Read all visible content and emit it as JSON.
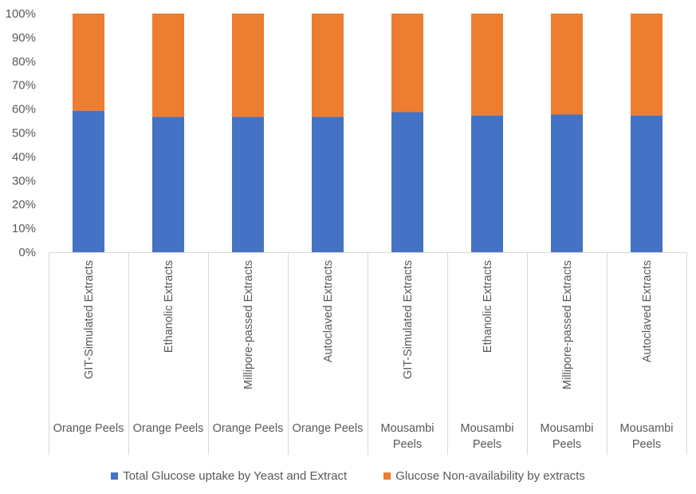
{
  "chart_data": {
    "type": "bar",
    "stacked": true,
    "percent_stacked": true,
    "title": "",
    "xlabel": "",
    "ylabel": "",
    "ylim": [
      0,
      100
    ],
    "y_ticks": [
      "0%",
      "10%",
      "20%",
      "30%",
      "40%",
      "50%",
      "60%",
      "70%",
      "80%",
      "90%",
      "100%"
    ],
    "categories": [
      {
        "label": "GIT-Simulated Extracts",
        "group": "Orange Peels"
      },
      {
        "label": "Ethanolic Extracts",
        "group": "Orange Peels"
      },
      {
        "label": "Millipore-passed Extracts",
        "group": "Orange Peels"
      },
      {
        "label": "Autoclaved Extracts",
        "group": "Orange Peels"
      },
      {
        "label": "GIT-Simulated Extracts",
        "group": "Mousambi Peels"
      },
      {
        "label": "Ethanolic Extracts",
        "group": "Mousambi Peels"
      },
      {
        "label": "Millipore-passed Extracts",
        "group": "Mousambi Peels"
      },
      {
        "label": "Autoclaved Extracts",
        "group": "Mousambi Peels"
      }
    ],
    "series": [
      {
        "name": "Total Glucose uptake by Yeast and Extract",
        "color": "#4472C4",
        "values": [
          59.3,
          56.7,
          56.7,
          56.7,
          58.7,
          57.3,
          57.7,
          57.3
        ]
      },
      {
        "name": "Glucose Non-availability by extracts",
        "color": "#ED7D31",
        "values": [
          40.7,
          43.3,
          43.3,
          43.3,
          41.3,
          42.7,
          42.3,
          42.7
        ]
      }
    ],
    "grid": false,
    "legend_position": "bottom"
  }
}
